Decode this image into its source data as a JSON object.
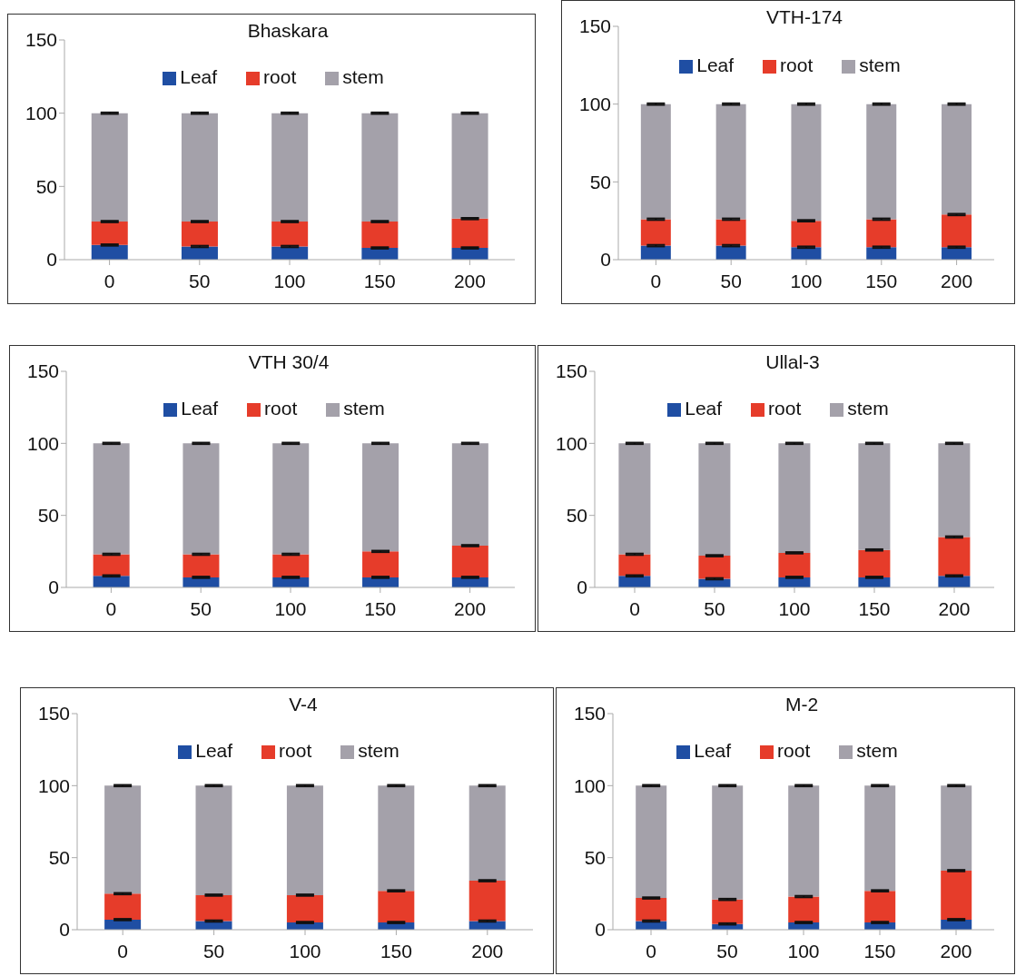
{
  "chart_data": [
    {
      "type": "bar",
      "stacked": true,
      "title": "Bhaskara",
      "categories": [
        "0",
        "50",
        "100",
        "150",
        "200"
      ],
      "ylim": [
        0,
        150
      ],
      "yticks": [
        0,
        50,
        100,
        150
      ],
      "legend": "top",
      "series": [
        {
          "name": "Leaf",
          "color": "#1f4ea3",
          "values": [
            10,
            9,
            9,
            8,
            8
          ],
          "errors": [
            0.5,
            0.5,
            0.5,
            0.5,
            0.5
          ]
        },
        {
          "name": "root",
          "color": "#e63c2a",
          "values": [
            16,
            17,
            17,
            18,
            20
          ],
          "errors": [
            0.5,
            0.5,
            0.5,
            0.5,
            0.5
          ]
        },
        {
          "name": "stem",
          "color": "#a4a1aa",
          "values": [
            74,
            74,
            74,
            74,
            72
          ],
          "errors": [
            0.5,
            0.5,
            0.5,
            0.5,
            0.5
          ]
        }
      ]
    },
    {
      "type": "bar",
      "stacked": true,
      "title": "VTH-174",
      "categories": [
        "0",
        "50",
        "100",
        "150",
        "200"
      ],
      "ylim": [
        0,
        150
      ],
      "yticks": [
        0,
        50,
        100,
        150
      ],
      "legend": "top",
      "series": [
        {
          "name": "Leaf",
          "color": "#1f4ea3",
          "values": [
            9,
            9,
            8,
            8,
            8
          ],
          "errors": [
            0.5,
            0.5,
            0.5,
            0.5,
            0.5
          ]
        },
        {
          "name": "root",
          "color": "#e63c2a",
          "values": [
            17,
            17,
            17,
            18,
            21
          ],
          "errors": [
            0.5,
            0.5,
            0.5,
            0.5,
            0.5
          ]
        },
        {
          "name": "stem",
          "color": "#a4a1aa",
          "values": [
            74,
            74,
            75,
            74,
            71
          ],
          "errors": [
            0.5,
            0.5,
            0.5,
            0.5,
            0.5
          ]
        }
      ]
    },
    {
      "type": "bar",
      "stacked": true,
      "title": "VTH 30/4",
      "categories": [
        "0",
        "50",
        "100",
        "150",
        "200"
      ],
      "ylim": [
        0,
        150
      ],
      "yticks": [
        0,
        50,
        100,
        150
      ],
      "legend": "top",
      "series": [
        {
          "name": "Leaf",
          "color": "#1f4ea3",
          "values": [
            8,
            7,
            7,
            7,
            7
          ],
          "errors": [
            0.5,
            0.5,
            0.5,
            0.5,
            0.5
          ]
        },
        {
          "name": "root",
          "color": "#e63c2a",
          "values": [
            15,
            16,
            16,
            18,
            22
          ],
          "errors": [
            0.5,
            0.5,
            0.5,
            0.5,
            0.5
          ]
        },
        {
          "name": "stem",
          "color": "#a4a1aa",
          "values": [
            77,
            77,
            77,
            75,
            71
          ],
          "errors": [
            0.5,
            0.5,
            0.5,
            0.5,
            0.5
          ]
        }
      ]
    },
    {
      "type": "bar",
      "stacked": true,
      "title": "Ullal-3",
      "categories": [
        "0",
        "50",
        "100",
        "150",
        "200"
      ],
      "ylim": [
        0,
        150
      ],
      "yticks": [
        0,
        50,
        100,
        150
      ],
      "legend": "top",
      "series": [
        {
          "name": "Leaf",
          "color": "#1f4ea3",
          "values": [
            8,
            6,
            7,
            7,
            8
          ],
          "errors": [
            0.5,
            0.5,
            0.5,
            0.5,
            0.5
          ]
        },
        {
          "name": "root",
          "color": "#e63c2a",
          "values": [
            15,
            16,
            17,
            19,
            27
          ],
          "errors": [
            0.5,
            0.5,
            0.5,
            0.5,
            0.5
          ]
        },
        {
          "name": "stem",
          "color": "#a4a1aa",
          "values": [
            77,
            78,
            76,
            74,
            65
          ],
          "errors": [
            0.5,
            0.5,
            0.5,
            0.5,
            0.5
          ]
        }
      ]
    },
    {
      "type": "bar",
      "stacked": true,
      "title": "V-4",
      "categories": [
        "0",
        "50",
        "100",
        "150",
        "200"
      ],
      "ylim": [
        0,
        150
      ],
      "yticks": [
        0,
        50,
        100,
        150
      ],
      "legend": "top",
      "series": [
        {
          "name": "Leaf",
          "color": "#1f4ea3",
          "values": [
            7,
            6,
            5,
            5,
            6
          ],
          "errors": [
            0.5,
            0.5,
            0.5,
            0.5,
            0.5
          ]
        },
        {
          "name": "root",
          "color": "#e63c2a",
          "values": [
            18,
            18,
            19,
            22,
            28
          ],
          "errors": [
            0.5,
            0.5,
            0.5,
            0.5,
            0.5
          ]
        },
        {
          "name": "stem",
          "color": "#a4a1aa",
          "values": [
            75,
            76,
            76,
            73,
            66
          ],
          "errors": [
            0.5,
            0.5,
            0.5,
            0.5,
            0.5
          ]
        }
      ]
    },
    {
      "type": "bar",
      "stacked": true,
      "title": "M-2",
      "categories": [
        "0",
        "50",
        "100",
        "150",
        "200"
      ],
      "ylim": [
        0,
        150
      ],
      "yticks": [
        0,
        50,
        100,
        150
      ],
      "legend": "top",
      "series": [
        {
          "name": "Leaf",
          "color": "#1f4ea3",
          "values": [
            6,
            4,
            5,
            5,
            7
          ],
          "errors": [
            0.5,
            0.5,
            0.5,
            0.5,
            0.5
          ]
        },
        {
          "name": "root",
          "color": "#e63c2a",
          "values": [
            16,
            17,
            18,
            22,
            34
          ],
          "errors": [
            0.5,
            0.5,
            0.5,
            0.5,
            0.5
          ]
        },
        {
          "name": "stem",
          "color": "#a4a1aa",
          "values": [
            78,
            79,
            77,
            73,
            59
          ],
          "errors": [
            0.5,
            0.5,
            0.5,
            0.5,
            0.5
          ]
        }
      ]
    }
  ]
}
